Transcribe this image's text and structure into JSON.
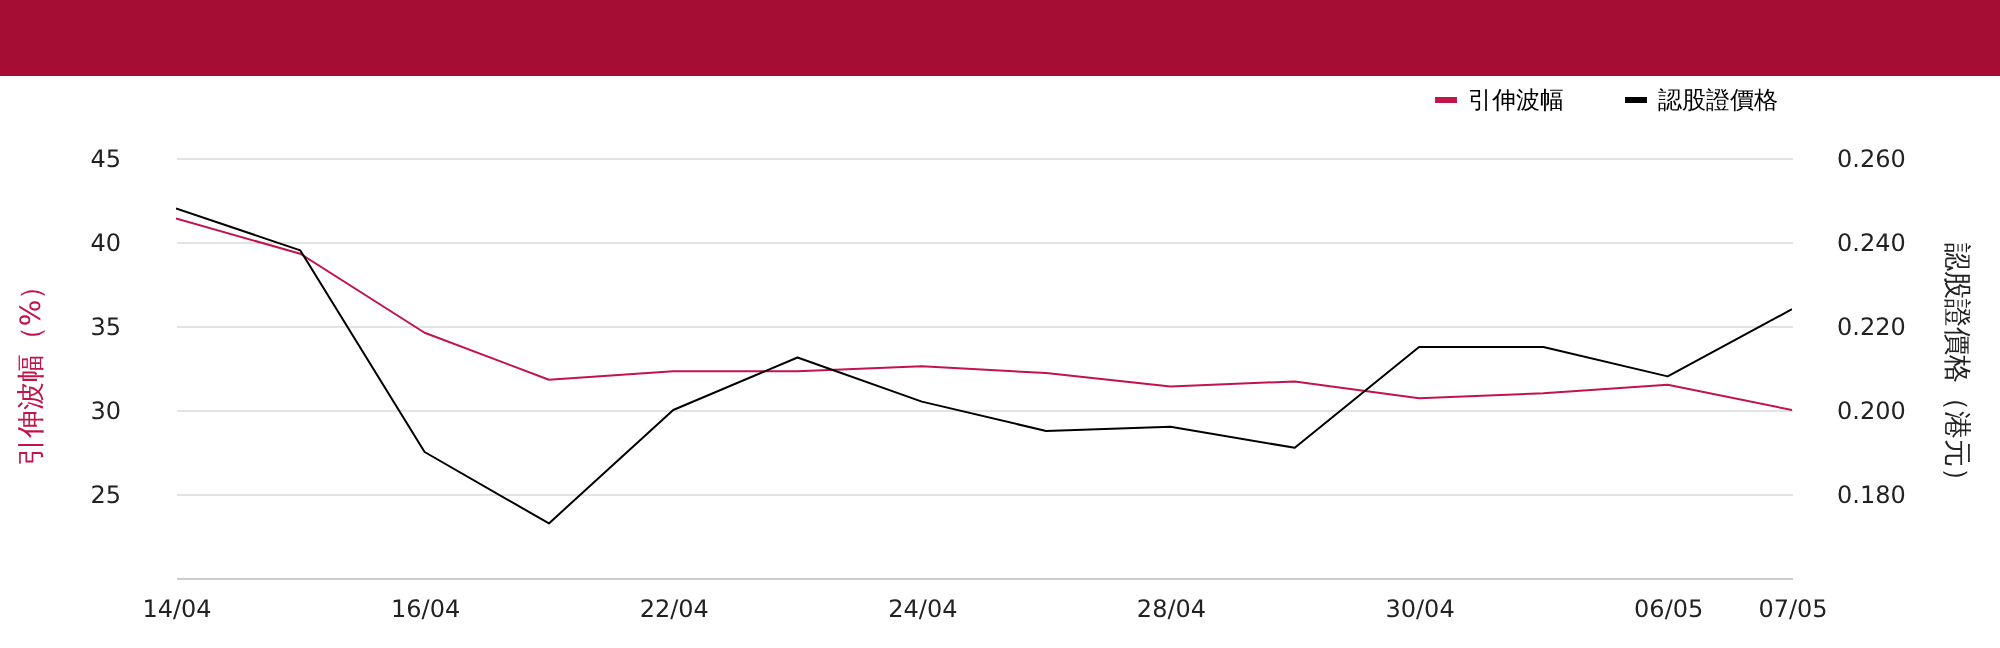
{
  "chart_data": {
    "type": "line",
    "categories": [
      "14/04",
      null,
      "16/04",
      null,
      "22/04",
      null,
      "24/04",
      null,
      "28/04",
      null,
      "30/04",
      null,
      "06/05",
      "07/05"
    ],
    "series": [
      {
        "name": "引伸波幅",
        "color": "#c0144a",
        "values": [
          41.4,
          39.3,
          34.6,
          31.8,
          32.3,
          32.3,
          32.6,
          32.2,
          31.4,
          31.7,
          30.7,
          31.0,
          31.5,
          30.0
        ]
      },
      {
        "name": "認股證價格",
        "color": "#000000",
        "axis": "y2",
        "values": [
          0.248,
          0.238,
          0.19,
          0.173,
          0.2,
          0.2125,
          0.202,
          0.195,
          0.196,
          0.191,
          0.215,
          0.215,
          0.208,
          0.224
        ]
      }
    ],
    "ylabel": "引伸波幅（%）",
    "y2label": "認股證價格（港元）",
    "ylim": [
      20,
      45
    ],
    "yticks": [
      25,
      30,
      35,
      40,
      45
    ],
    "y2lim": [
      0.16,
      0.26
    ],
    "y2ticks": [
      {
        "value": 0.18,
        "label": "0.180"
      },
      {
        "value": 0.2,
        "label": "0.200"
      },
      {
        "value": 0.22,
        "label": "0.220"
      },
      {
        "value": 0.24,
        "label": "0.240"
      },
      {
        "value": 0.26,
        "label": "0.260"
      }
    ],
    "grid": "y",
    "legend": "top right",
    "marker": "none",
    "line_style": "solid"
  }
}
